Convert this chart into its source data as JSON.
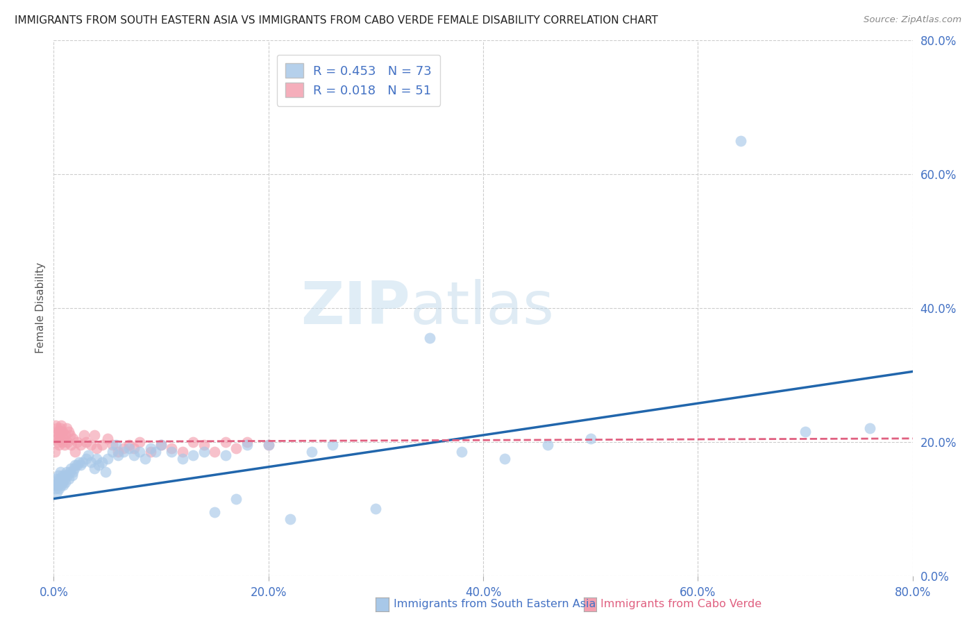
{
  "title": "IMMIGRANTS FROM SOUTH EASTERN ASIA VS IMMIGRANTS FROM CABO VERDE FEMALE DISABILITY CORRELATION CHART",
  "source": "Source: ZipAtlas.com",
  "xlabel_blue": "Immigrants from South Eastern Asia",
  "xlabel_pink": "Immigrants from Cabo Verde",
  "ylabel": "Female Disability",
  "blue_color": "#a8c8e8",
  "pink_color": "#f4a0b0",
  "blue_line_color": "#2166ac",
  "pink_line_color": "#e06080",
  "R_blue": 0.453,
  "N_blue": 73,
  "R_pink": 0.018,
  "N_pink": 51,
  "xlim": [
    0.0,
    0.8
  ],
  "ylim": [
    0.0,
    0.8
  ],
  "grid_vals": [
    0.0,
    0.2,
    0.4,
    0.6,
    0.8
  ],
  "tick_labels": [
    "0.0%",
    "20.0%",
    "40.0%",
    "60.0%",
    "80.0%"
  ],
  "blue_scatter_x": [
    0.001,
    0.002,
    0.002,
    0.003,
    0.003,
    0.004,
    0.004,
    0.005,
    0.005,
    0.006,
    0.006,
    0.007,
    0.007,
    0.008,
    0.008,
    0.009,
    0.01,
    0.01,
    0.011,
    0.012,
    0.013,
    0.014,
    0.015,
    0.016,
    0.017,
    0.018,
    0.019,
    0.02,
    0.022,
    0.024,
    0.025,
    0.027,
    0.03,
    0.032,
    0.035,
    0.038,
    0.04,
    0.042,
    0.045,
    0.048,
    0.05,
    0.055,
    0.058,
    0.06,
    0.065,
    0.07,
    0.075,
    0.08,
    0.085,
    0.09,
    0.095,
    0.1,
    0.11,
    0.12,
    0.13,
    0.14,
    0.15,
    0.16,
    0.17,
    0.18,
    0.2,
    0.22,
    0.24,
    0.26,
    0.3,
    0.35,
    0.38,
    0.42,
    0.46,
    0.5,
    0.64,
    0.7,
    0.76
  ],
  "blue_scatter_y": [
    0.135,
    0.13,
    0.145,
    0.125,
    0.14,
    0.135,
    0.15,
    0.13,
    0.145,
    0.14,
    0.155,
    0.135,
    0.145,
    0.14,
    0.15,
    0.135,
    0.145,
    0.15,
    0.14,
    0.155,
    0.15,
    0.145,
    0.155,
    0.16,
    0.15,
    0.155,
    0.16,
    0.165,
    0.165,
    0.17,
    0.165,
    0.17,
    0.175,
    0.18,
    0.17,
    0.16,
    0.175,
    0.165,
    0.17,
    0.155,
    0.175,
    0.185,
    0.195,
    0.18,
    0.185,
    0.19,
    0.18,
    0.185,
    0.175,
    0.19,
    0.185,
    0.195,
    0.185,
    0.175,
    0.18,
    0.185,
    0.095,
    0.18,
    0.115,
    0.195,
    0.195,
    0.085,
    0.185,
    0.195,
    0.1,
    0.355,
    0.185,
    0.175,
    0.195,
    0.205,
    0.65,
    0.215,
    0.22
  ],
  "pink_scatter_x": [
    0.001,
    0.002,
    0.002,
    0.003,
    0.003,
    0.004,
    0.004,
    0.005,
    0.005,
    0.006,
    0.006,
    0.007,
    0.007,
    0.008,
    0.008,
    0.009,
    0.01,
    0.011,
    0.012,
    0.013,
    0.014,
    0.015,
    0.016,
    0.018,
    0.02,
    0.022,
    0.025,
    0.028,
    0.03,
    0.035,
    0.038,
    0.04,
    0.045,
    0.05,
    0.055,
    0.06,
    0.065,
    0.07,
    0.075,
    0.08,
    0.09,
    0.1,
    0.11,
    0.12,
    0.13,
    0.14,
    0.15,
    0.16,
    0.17,
    0.18,
    0.2
  ],
  "pink_scatter_y": [
    0.185,
    0.21,
    0.225,
    0.205,
    0.22,
    0.2,
    0.215,
    0.195,
    0.21,
    0.22,
    0.205,
    0.225,
    0.215,
    0.2,
    0.215,
    0.205,
    0.195,
    0.21,
    0.22,
    0.2,
    0.215,
    0.21,
    0.195,
    0.205,
    0.185,
    0.2,
    0.195,
    0.21,
    0.2,
    0.195,
    0.21,
    0.19,
    0.195,
    0.205,
    0.195,
    0.185,
    0.19,
    0.195,
    0.19,
    0.2,
    0.185,
    0.195,
    0.19,
    0.185,
    0.2,
    0.195,
    0.185,
    0.2,
    0.19,
    0.2,
    0.195
  ],
  "blue_trend_x0": 0.0,
  "blue_trend_y0": 0.115,
  "blue_trend_x1": 0.8,
  "blue_trend_y1": 0.305,
  "pink_trend_x0": 0.0,
  "pink_trend_y0": 0.2,
  "pink_trend_x1": 0.8,
  "pink_trend_y1": 0.205,
  "watermark_zip": "ZIP",
  "watermark_atlas": "atlas",
  "title_fontsize": 11,
  "tick_label_color": "#4472c4",
  "axis_label_color": "#555555",
  "legend_text_color": "#4472c4"
}
